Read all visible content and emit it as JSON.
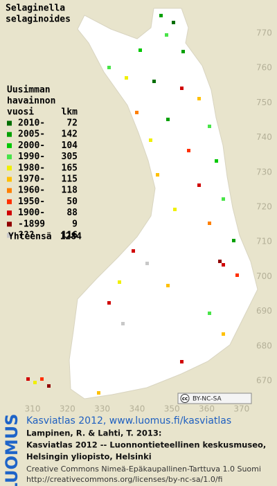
{
  "title": [
    "Selaginella",
    "selaginoides"
  ],
  "legend": {
    "header": [
      "Uusimman",
      "havainnon",
      "vuosi"
    ],
    "count_header": "lkm",
    "rows": [
      {
        "label": "2010-",
        "count": 72,
        "color": "#006e00"
      },
      {
        "label": "2005-",
        "count": 142,
        "color": "#00a000"
      },
      {
        "label": "2000-",
        "count": 104,
        "color": "#00c800"
      },
      {
        "label": "1990-",
        "count": 305,
        "color": "#48e448"
      },
      {
        "label": "1980-",
        "count": 165,
        "color": "#f0f000"
      },
      {
        "label": "1970-",
        "count": 115,
        "color": "#ffc000"
      },
      {
        "label": "1960-",
        "count": 118,
        "color": "#ff8000"
      },
      {
        "label": "1950-",
        "count": 50,
        "color": "#ff3000"
      },
      {
        "label": "1900-",
        "count": 88,
        "color": "#d00000"
      },
      {
        "label": "-1899",
        "count": 9,
        "color": "#900000"
      },
      {
        "label": "???",
        "count": 116,
        "color": "#c8c8c8"
      }
    ],
    "total": {
      "label": "Yhteensä",
      "value": 1284
    }
  },
  "map": {
    "xticks": [
      310,
      320,
      330,
      340,
      350,
      360,
      370
    ],
    "yticks": [
      670,
      680,
      690,
      700,
      710,
      720,
      730,
      740,
      750,
      760,
      770
    ]
  },
  "license_badge": "BY-NC-SA",
  "footer": {
    "logo": "LUOMUS",
    "link": "Kasviatlas 2012, www.luomus.fi/kasviatlas",
    "citation": [
      "Lampinen, R. & Lahti, T. 2013:",
      "Kasviatlas 2012 -- Luonnontieteellinen keskusmuseo,",
      "Helsingin yliopisto, Helsinki"
    ],
    "license": [
      "Creative Commons Nimeä-Epäkaupallinen-Tarttuva 1.0 Suomi",
      "http://creativecommons.org/licenses/by-nc-sa/1.0/fi"
    ]
  }
}
